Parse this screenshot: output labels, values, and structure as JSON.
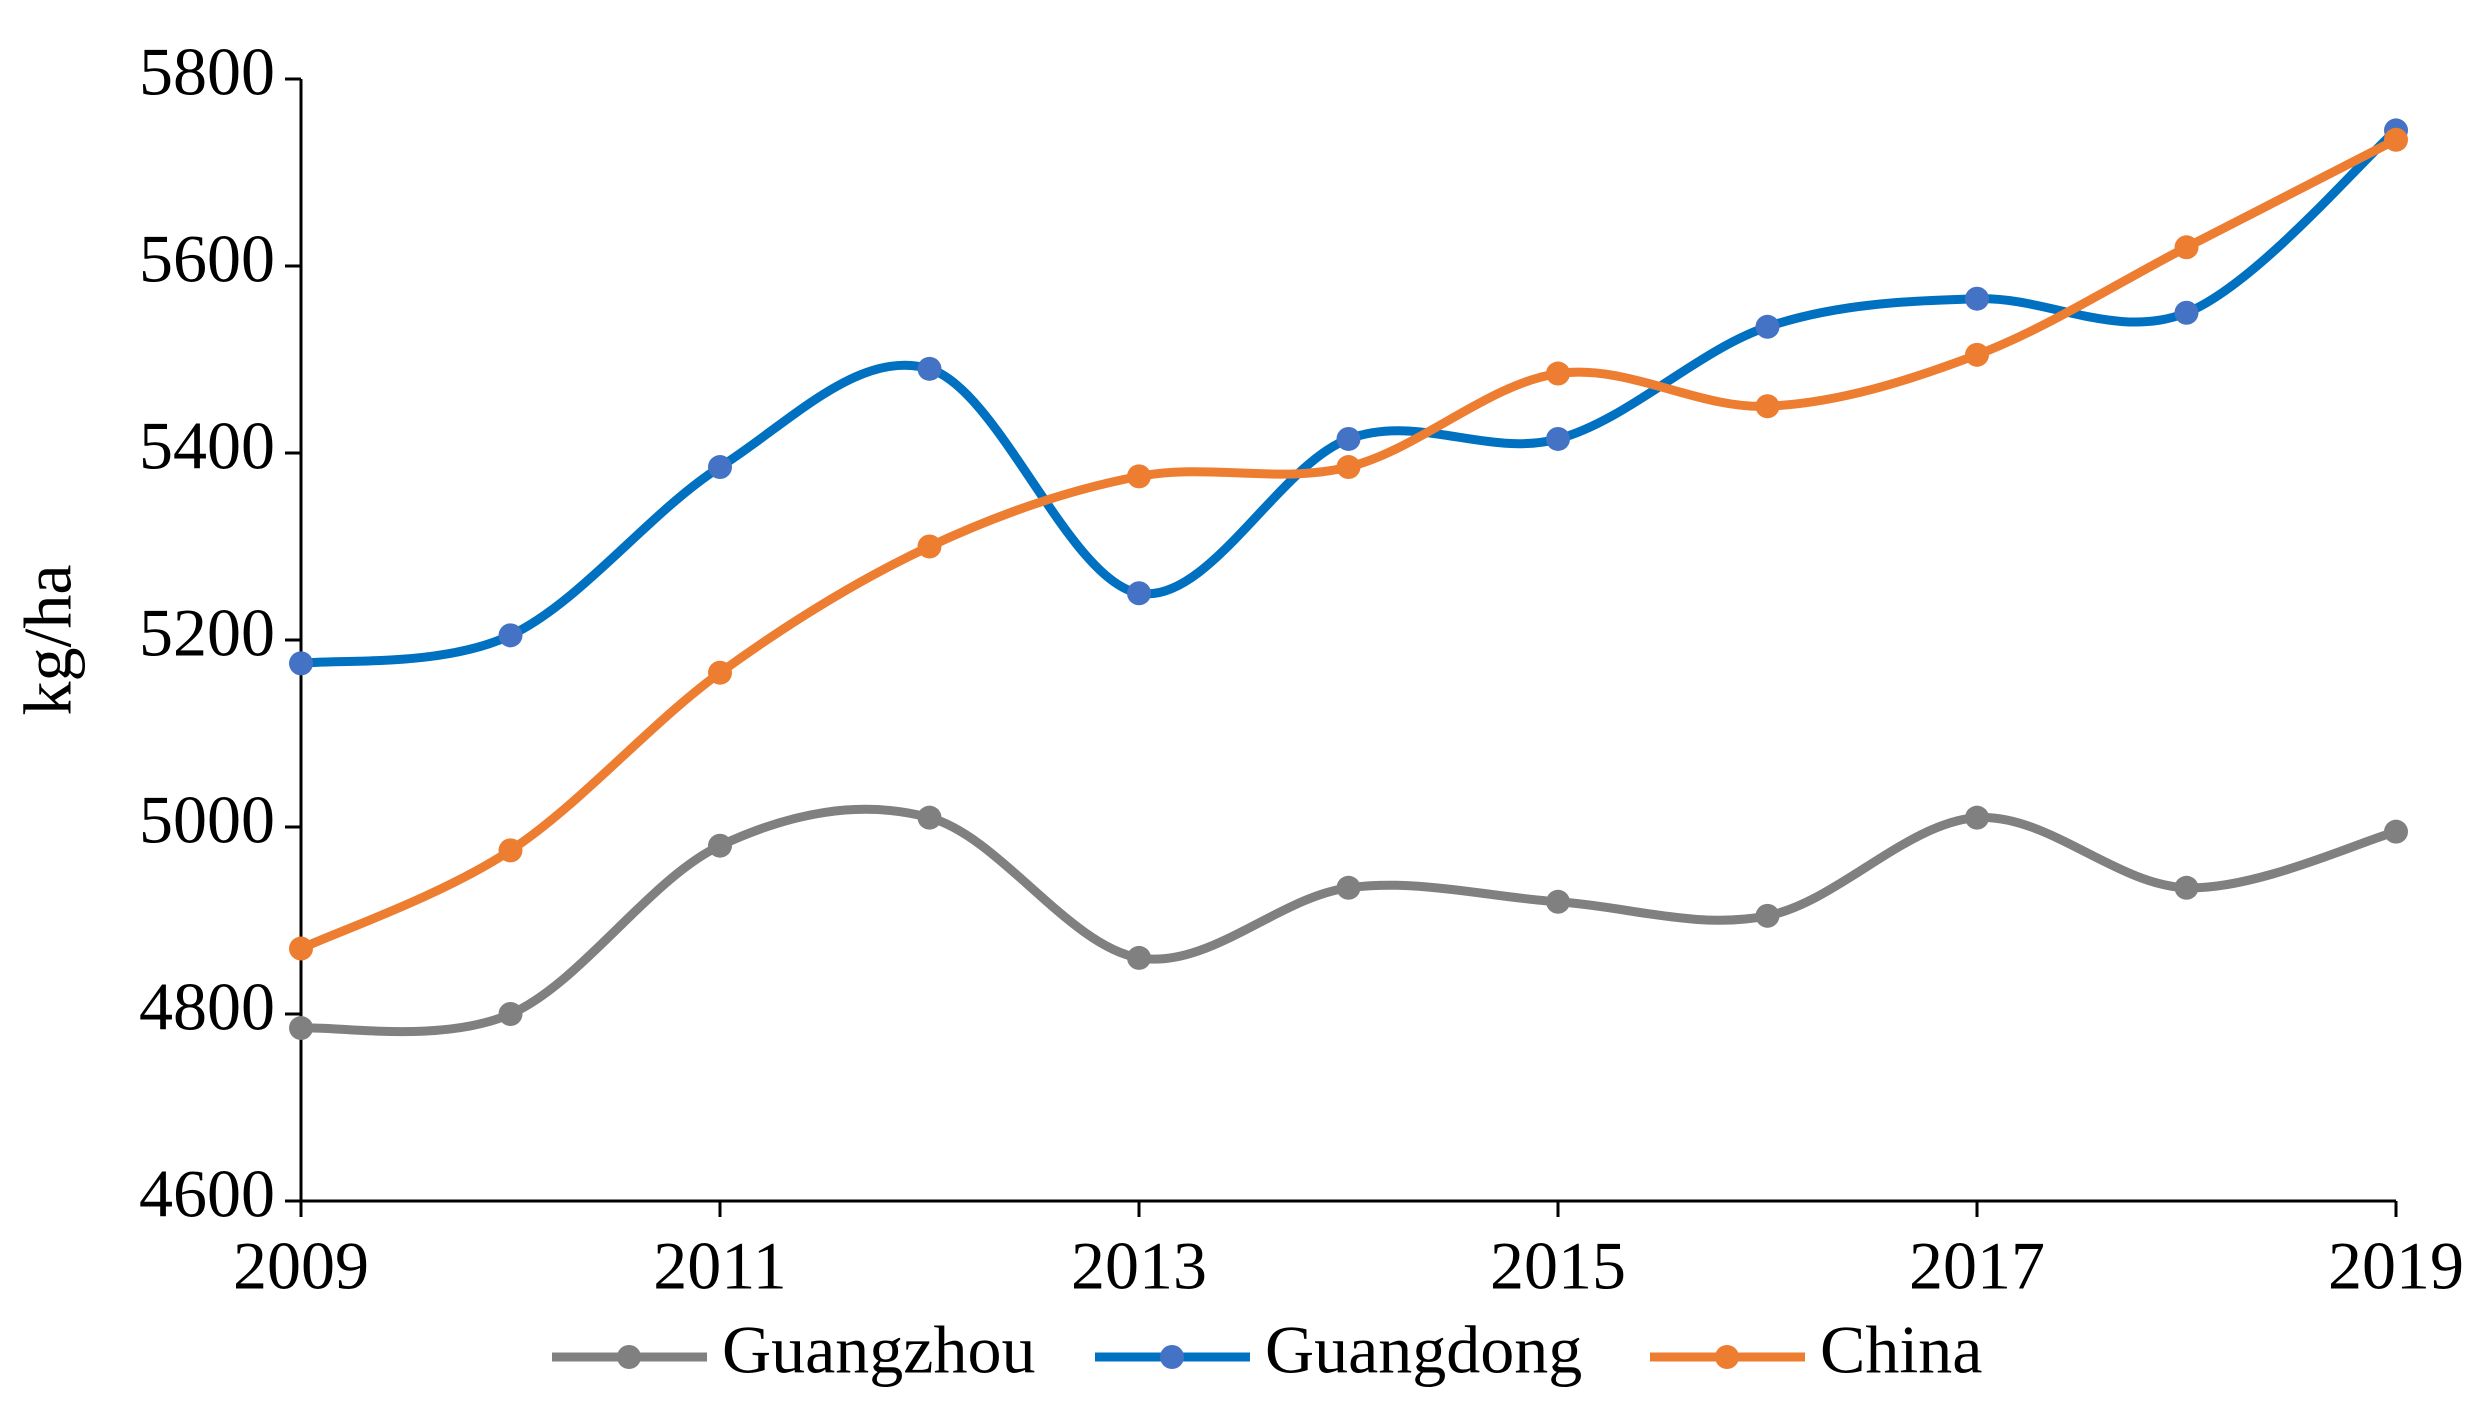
{
  "chart_data": {
    "type": "line",
    "y_label": "kg/ha",
    "x": [
      2009,
      2010,
      2011,
      2012,
      2013,
      2014,
      2015,
      2016,
      2017,
      2018,
      2019
    ],
    "series": [
      {
        "name": "Guangzhou",
        "color": "#808080",
        "values": [
          4785,
          4800,
          4980,
          5010,
          4860,
          4935,
          4920,
          4905,
          5010,
          4935,
          4995
        ]
      },
      {
        "name": "Guangdong",
        "color": "#0070c0",
        "values": [
          5175,
          5205,
          5385,
          5490,
          5250,
          5415,
          5415,
          5535,
          5565,
          5550,
          5745
        ]
      },
      {
        "name": "China",
        "color": "#ed7d31",
        "values": [
          4870,
          4975,
          5165,
          5300,
          5375,
          5385,
          5485,
          5450,
          5505,
          5620,
          5735
        ]
      }
    ],
    "xlim": [
      2009,
      2019
    ],
    "xticks": [
      2009,
      2011,
      2013,
      2015,
      2017,
      2019
    ],
    "ylim": [
      4600,
      5800
    ],
    "yticks": [
      4600,
      4800,
      5000,
      5200,
      5400,
      5600,
      5800
    ],
    "smooth": true,
    "legend": "bottom"
  }
}
